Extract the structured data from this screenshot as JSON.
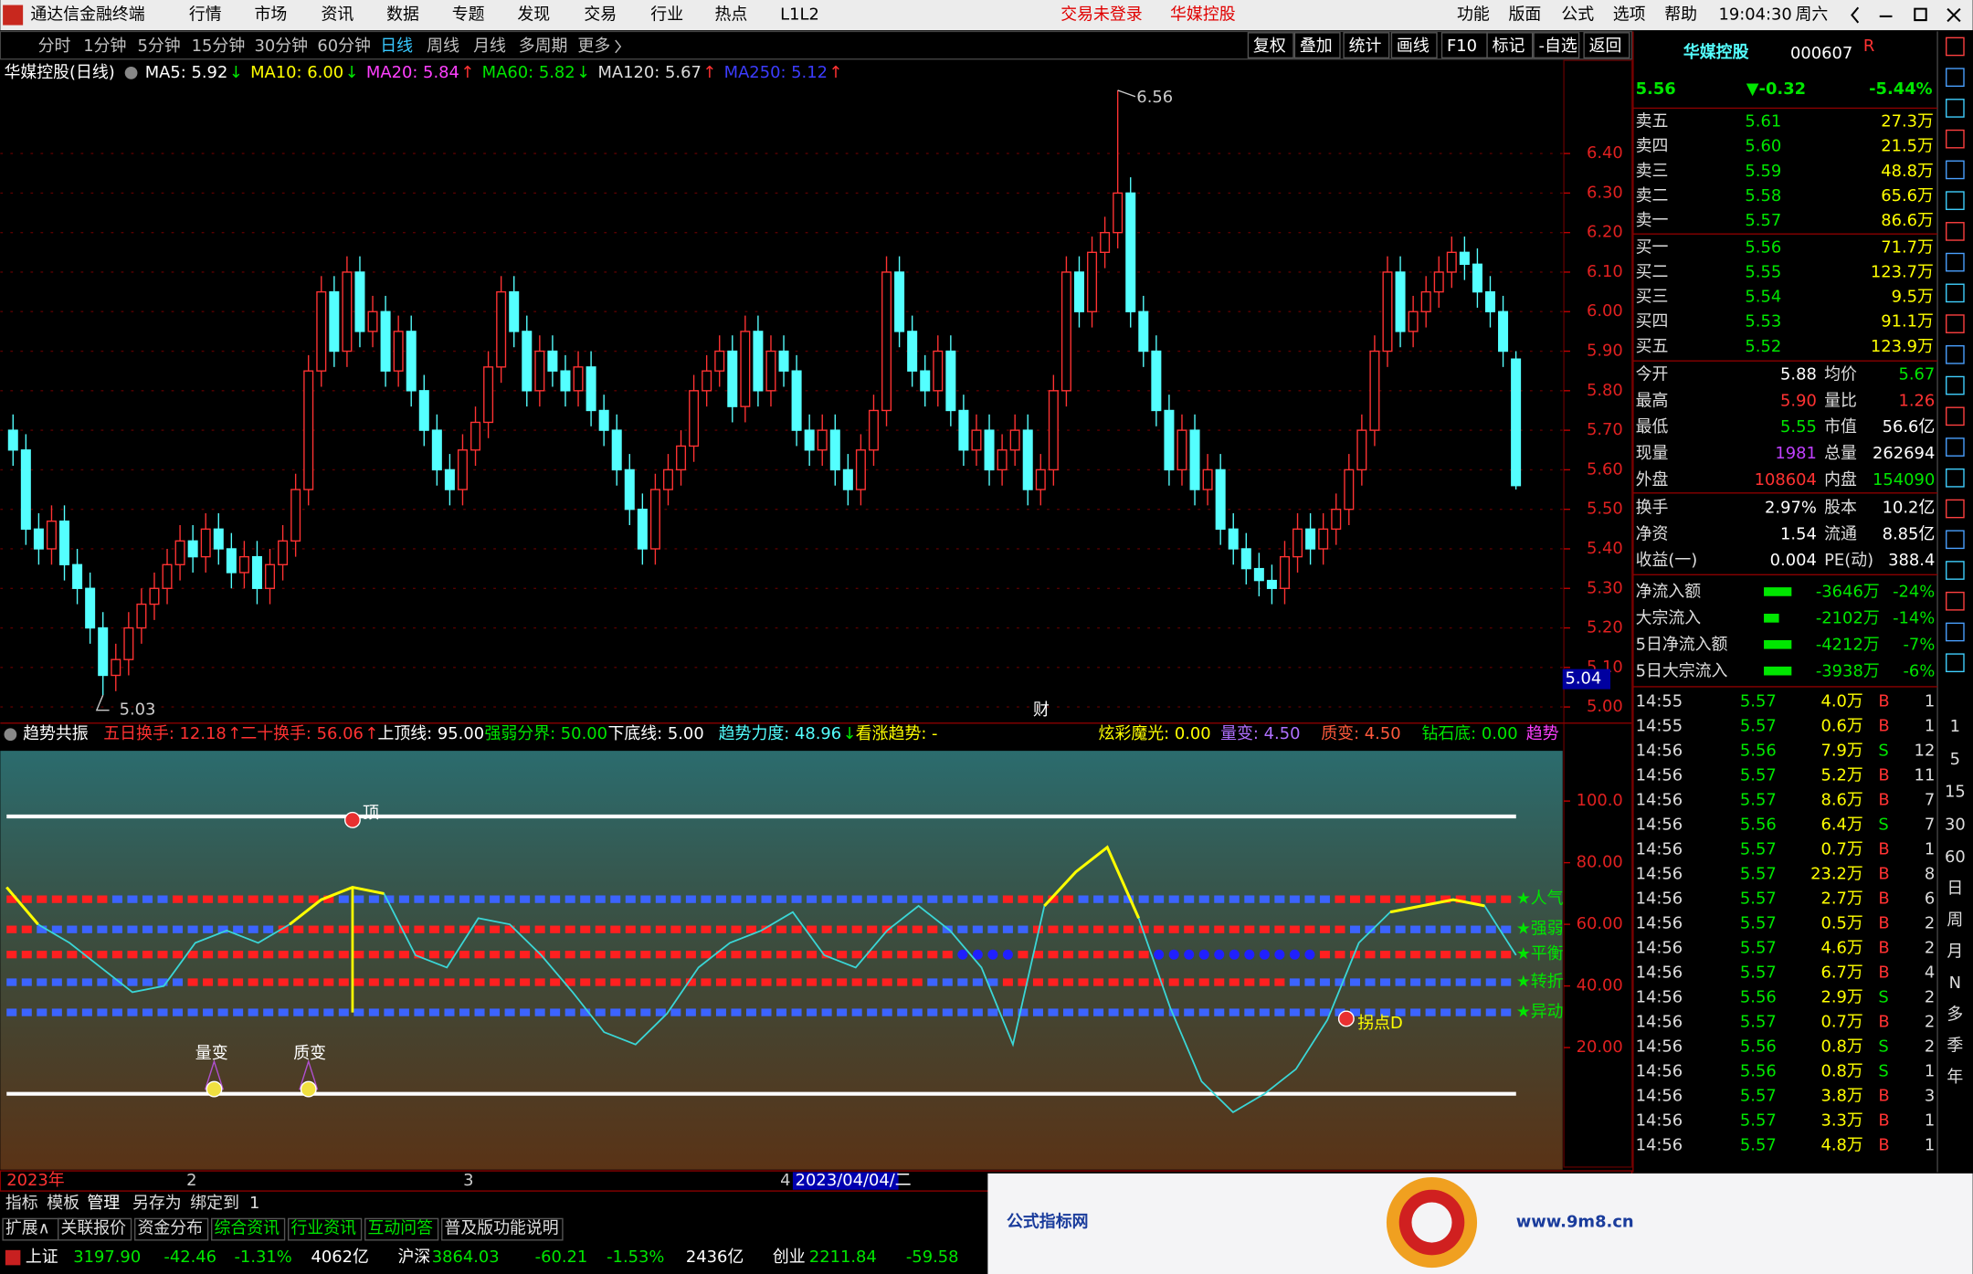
{
  "menu": {
    "app": "通达信金融终端",
    "items": [
      "行情",
      "市场",
      "资讯",
      "数据",
      "专题",
      "发现",
      "交易",
      "行业",
      "热点",
      "L1L2"
    ],
    "login": "交易未登录",
    "stock_link": "华媒控股",
    "right": [
      "功能",
      "版面",
      "公式",
      "选项",
      "帮助"
    ],
    "time": "19:04:30",
    "weekday": "周六"
  },
  "period_tabs": [
    "分时",
    "1分钟",
    "5分钟",
    "15分钟",
    "30分钟",
    "60分钟",
    "日线",
    "周线",
    "月线",
    "多周期",
    "更多"
  ],
  "tools": [
    "复权",
    "叠加",
    "统计",
    "画线",
    "F10",
    "标记",
    "-自选",
    "返回"
  ],
  "chart_data": {
    "type": "candlestick",
    "stock_label": "华媒控股(日线)",
    "ma": [
      {
        "label": "MA5: 5.92",
        "arrow": "↓",
        "color": "#ffffff"
      },
      {
        "label": "MA10: 6.00",
        "arrow": "↓",
        "color": "#ffff00"
      },
      {
        "label": "MA20: 5.84",
        "arrow": "↑",
        "color": "#ff40ff"
      },
      {
        "label": "MA60: 5.82",
        "arrow": "↓",
        "color": "#00e600"
      },
      {
        "label": "MA120: 5.67",
        "arrow": "↑",
        "color": "#dddddd"
      },
      {
        "label": "MA250: 5.12",
        "arrow": "↑",
        "color": "#3c3cff"
      }
    ],
    "up_color": "#ff3232",
    "down_color": "#54ffff",
    "ylim": [
      4.975,
      6.572
    ],
    "yticks": [
      {
        "value": 6.4,
        "label": "6.40"
      },
      {
        "value": 6.3,
        "label": "6.30"
      },
      {
        "value": 6.2,
        "label": "6.20"
      },
      {
        "value": 6.1,
        "label": "6.10"
      },
      {
        "value": 6.0,
        "label": "6.00"
      },
      {
        "value": 5.9,
        "label": "5.90"
      },
      {
        "value": 5.8,
        "label": "5.80"
      },
      {
        "value": 5.7,
        "label": "5.70"
      },
      {
        "value": 5.6,
        "label": "5.60"
      },
      {
        "value": 5.5,
        "label": "5.50"
      },
      {
        "value": 5.4,
        "label": "5.40"
      },
      {
        "value": 5.3,
        "label": "5.30"
      },
      {
        "value": 5.2,
        "label": "5.20"
      },
      {
        "value": 5.1,
        "label": "5.10"
      },
      {
        "value": 5.0,
        "label": "5.00"
      }
    ],
    "cursor_price": "5.04",
    "marker": "财",
    "candles": [
      [
        5.7,
        5.74,
        5.61,
        5.65
      ],
      [
        5.65,
        5.69,
        5.41,
        5.45
      ],
      [
        5.45,
        5.49,
        5.36,
        5.4
      ],
      [
        5.4,
        5.51,
        5.36,
        5.47
      ],
      [
        5.47,
        5.51,
        5.32,
        5.36
      ],
      [
        5.36,
        5.4,
        5.26,
        5.3
      ],
      [
        5.3,
        5.34,
        5.16,
        5.2
      ],
      [
        5.2,
        5.24,
        5.03,
        5.08
      ],
      [
        5.08,
        5.16,
        5.04,
        5.12
      ],
      [
        5.12,
        5.24,
        5.08,
        5.2
      ],
      [
        5.2,
        5.3,
        5.16,
        5.26
      ],
      [
        5.26,
        5.34,
        5.22,
        5.3
      ],
      [
        5.3,
        5.4,
        5.26,
        5.36
      ],
      [
        5.36,
        5.46,
        5.32,
        5.42
      ],
      [
        5.42,
        5.46,
        5.34,
        5.38
      ],
      [
        5.38,
        5.49,
        5.34,
        5.45
      ],
      [
        5.45,
        5.49,
        5.36,
        5.4
      ],
      [
        5.4,
        5.44,
        5.3,
        5.34
      ],
      [
        5.34,
        5.42,
        5.3,
        5.38
      ],
      [
        5.38,
        5.42,
        5.26,
        5.3
      ],
      [
        5.3,
        5.4,
        5.26,
        5.36
      ],
      [
        5.36,
        5.46,
        5.32,
        5.42
      ],
      [
        5.42,
        5.59,
        5.38,
        5.55
      ],
      [
        5.55,
        5.89,
        5.51,
        5.85
      ],
      [
        5.85,
        6.09,
        5.81,
        6.05
      ],
      [
        6.05,
        6.09,
        5.86,
        5.9
      ],
      [
        5.9,
        6.14,
        5.86,
        6.1
      ],
      [
        6.1,
        6.14,
        5.91,
        5.95
      ],
      [
        5.95,
        6.04,
        5.91,
        6.0
      ],
      [
        6.0,
        6.04,
        5.81,
        5.85
      ],
      [
        5.85,
        5.99,
        5.81,
        5.95
      ],
      [
        5.95,
        5.99,
        5.76,
        5.8
      ],
      [
        5.8,
        5.84,
        5.66,
        5.7
      ],
      [
        5.7,
        5.74,
        5.56,
        5.6
      ],
      [
        5.6,
        5.64,
        5.51,
        5.55
      ],
      [
        5.55,
        5.69,
        5.51,
        5.65
      ],
      [
        5.65,
        5.76,
        5.61,
        5.72
      ],
      [
        5.72,
        5.9,
        5.68,
        5.86
      ],
      [
        5.86,
        6.09,
        5.82,
        6.05
      ],
      [
        6.05,
        6.09,
        5.91,
        5.95
      ],
      [
        5.95,
        5.99,
        5.76,
        5.8
      ],
      [
        5.8,
        5.94,
        5.76,
        5.9
      ],
      [
        5.9,
        5.94,
        5.81,
        5.85
      ],
      [
        5.85,
        5.89,
        5.76,
        5.8
      ],
      [
        5.8,
        5.9,
        5.76,
        5.86
      ],
      [
        5.86,
        5.9,
        5.71,
        5.75
      ],
      [
        5.75,
        5.79,
        5.66,
        5.7
      ],
      [
        5.7,
        5.74,
        5.56,
        5.6
      ],
      [
        5.6,
        5.64,
        5.46,
        5.5
      ],
      [
        5.5,
        5.54,
        5.36,
        5.4
      ],
      [
        5.4,
        5.59,
        5.36,
        5.55
      ],
      [
        5.55,
        5.64,
        5.51,
        5.6
      ],
      [
        5.6,
        5.7,
        5.56,
        5.66
      ],
      [
        5.66,
        5.84,
        5.62,
        5.8
      ],
      [
        5.8,
        5.89,
        5.76,
        5.85
      ],
      [
        5.85,
        5.94,
        5.81,
        5.9
      ],
      [
        5.9,
        5.94,
        5.72,
        5.76
      ],
      [
        5.76,
        5.99,
        5.72,
        5.95
      ],
      [
        5.95,
        5.99,
        5.76,
        5.8
      ],
      [
        5.8,
        5.94,
        5.76,
        5.9
      ],
      [
        5.9,
        5.94,
        5.81,
        5.85
      ],
      [
        5.85,
        5.89,
        5.66,
        5.7
      ],
      [
        5.7,
        5.74,
        5.61,
        5.65
      ],
      [
        5.65,
        5.74,
        5.61,
        5.7
      ],
      [
        5.7,
        5.74,
        5.56,
        5.6
      ],
      [
        5.6,
        5.64,
        5.51,
        5.55
      ],
      [
        5.55,
        5.69,
        5.51,
        5.65
      ],
      [
        5.65,
        5.79,
        5.61,
        5.75
      ],
      [
        5.75,
        6.14,
        5.71,
        6.1
      ],
      [
        6.1,
        6.14,
        5.91,
        5.95
      ],
      [
        5.95,
        5.99,
        5.81,
        5.85
      ],
      [
        5.85,
        5.89,
        5.76,
        5.8
      ],
      [
        5.8,
        5.94,
        5.76,
        5.9
      ],
      [
        5.9,
        5.94,
        5.71,
        5.75
      ],
      [
        5.75,
        5.79,
        5.61,
        5.65
      ],
      [
        5.65,
        5.74,
        5.61,
        5.7
      ],
      [
        5.7,
        5.74,
        5.56,
        5.6
      ],
      [
        5.6,
        5.69,
        5.56,
        5.65
      ],
      [
        5.65,
        5.74,
        5.61,
        5.7
      ],
      [
        5.7,
        5.74,
        5.51,
        5.55
      ],
      [
        5.55,
        5.64,
        5.51,
        5.6
      ],
      [
        5.6,
        5.84,
        5.56,
        5.8
      ],
      [
        5.8,
        6.14,
        5.76,
        6.1
      ],
      [
        6.1,
        6.14,
        5.96,
        6.0
      ],
      [
        6.0,
        6.19,
        5.96,
        6.15
      ],
      [
        6.15,
        6.24,
        6.11,
        6.2
      ],
      [
        6.2,
        6.56,
        6.16,
        6.3
      ],
      [
        6.3,
        6.34,
        5.96,
        6.0
      ],
      [
        6.0,
        6.04,
        5.86,
        5.9
      ],
      [
        5.9,
        5.94,
        5.71,
        5.75
      ],
      [
        5.75,
        5.79,
        5.56,
        5.6
      ],
      [
        5.6,
        5.74,
        5.56,
        5.7
      ],
      [
        5.7,
        5.74,
        5.51,
        5.55
      ],
      [
        5.55,
        5.64,
        5.51,
        5.6
      ],
      [
        5.6,
        5.64,
        5.41,
        5.45
      ],
      [
        5.45,
        5.49,
        5.36,
        5.4
      ],
      [
        5.4,
        5.44,
        5.31,
        5.35
      ],
      [
        5.35,
        5.39,
        5.28,
        5.32
      ],
      [
        5.32,
        5.36,
        5.26,
        5.3
      ],
      [
        5.3,
        5.42,
        5.26,
        5.38
      ],
      [
        5.38,
        5.49,
        5.34,
        5.45
      ],
      [
        5.45,
        5.49,
        5.36,
        5.4
      ],
      [
        5.4,
        5.49,
        5.36,
        5.45
      ],
      [
        5.45,
        5.54,
        5.41,
        5.5
      ],
      [
        5.5,
        5.64,
        5.46,
        5.6
      ],
      [
        5.6,
        5.74,
        5.56,
        5.7
      ],
      [
        5.7,
        5.94,
        5.66,
        5.9
      ],
      [
        5.9,
        6.14,
        5.86,
        6.1
      ],
      [
        6.1,
        6.14,
        5.91,
        5.95
      ],
      [
        5.95,
        6.04,
        5.91,
        6.0
      ],
      [
        6.0,
        6.09,
        5.96,
        6.05
      ],
      [
        6.05,
        6.14,
        6.01,
        6.1
      ],
      [
        6.1,
        6.19,
        6.06,
        6.15
      ],
      [
        6.15,
        6.19,
        6.08,
        6.12
      ],
      [
        6.12,
        6.16,
        6.01,
        6.05
      ],
      [
        6.05,
        6.09,
        5.96,
        6.0
      ],
      [
        6.0,
        6.04,
        5.86,
        5.9
      ],
      [
        5.88,
        5.9,
        5.55,
        5.56
      ]
    ]
  },
  "indicator": {
    "type": "line",
    "title": "趋势共振",
    "params": [
      {
        "text": "五日换手: 12.18",
        "arrow": "↑",
        "color": "#ff3232"
      },
      {
        "text": "二十换手: 56.06",
        "arrow": "↑",
        "color": "#ff3232"
      },
      {
        "text": "上顶线: 95.00",
        "color": "#ffffff"
      },
      {
        "text": "强弱分界: 50.00",
        "color": "#00e600"
      },
      {
        "text": "下底线: 5.00",
        "color": "#ffffff"
      },
      {
        "text": "趋势力度: 48.96",
        "arrow": "↓",
        "color": "#54ffff"
      },
      {
        "text": "看涨趋势: -",
        "color": "#ffff00"
      },
      {
        "text": "炫彩魔光: 0.00",
        "color": "#ffff00"
      },
      {
        "text": "量变: 4.50",
        "color": "#b070ff"
      },
      {
        "text": "质变: 4.50",
        "color": "#ff5a3c"
      },
      {
        "text": "钻石底: 0.00",
        "color": "#00e600"
      },
      {
        "text": "趋势",
        "color": "#ff40ff"
      }
    ],
    "ylim": [
      -19.6,
      116.3
    ],
    "yticks": [
      {
        "value": 100,
        "label": "100.0"
      },
      {
        "value": 80,
        "label": "80.00"
      },
      {
        "value": 60,
        "label": "60.00"
      },
      {
        "value": 40,
        "label": "40.00"
      },
      {
        "value": 20,
        "label": "20.00"
      }
    ],
    "levels": {
      "top": 95,
      "bottom": 5
    },
    "row_labels": [
      "★人气",
      "★强弱",
      "★平衡",
      "★转折",
      "★异动"
    ],
    "series": [
      {
        "color": "#3ad6d6",
        "values": [
          72,
          60,
          54,
          46,
          38,
          40,
          54,
          58,
          54,
          60,
          68,
          72,
          70,
          50,
          46,
          62,
          60,
          50,
          38,
          25,
          21,
          31,
          46,
          54,
          58,
          64,
          50,
          46,
          58,
          66,
          58,
          46,
          21,
          66,
          77,
          85,
          62,
          33,
          9,
          -1,
          5,
          13,
          29,
          54,
          64,
          66,
          68,
          66,
          50
        ]
      },
      {
        "color": "#ffff00",
        "values": [
          72,
          60,
          null,
          null,
          null,
          null,
          null,
          null,
          null,
          60,
          68,
          72,
          70,
          null,
          null,
          null,
          null,
          null,
          null,
          null,
          null,
          null,
          null,
          null,
          null,
          64,
          null,
          null,
          null,
          66,
          null,
          null,
          null,
          66,
          77,
          85,
          62,
          null,
          null,
          null,
          null,
          null,
          null,
          null,
          64,
          66,
          68,
          66,
          null
        ]
      }
    ],
    "markers": [
      "顶",
      "量变",
      "质变",
      "拐点D"
    ]
  },
  "date_axis": [
    "2023年",
    "2",
    "3",
    "4",
    "2023/04/04/二"
  ],
  "bottom_tabs": [
    "指标",
    "模板",
    "管理",
    "另存为",
    "绑定到",
    "1"
  ],
  "bottom_links": [
    "扩展∧",
    "关联报价",
    "资金分布",
    "综合资讯",
    "行业资讯",
    "互动问答",
    "普及版功能说明"
  ],
  "index_bar": [
    "上证",
    "3197.90",
    "-42.46",
    "-1.31%",
    "4062亿",
    "沪深",
    "3864.03",
    "-60.21",
    "-1.53%",
    "2436亿",
    "创业",
    "2211.84",
    "-59.58"
  ],
  "quote": {
    "name": "华媒控股",
    "code": "000607",
    "tag": "R",
    "price": "5.56",
    "change": "▼-0.32",
    "pct": "-5.44%",
    "asks": [
      [
        "卖五",
        "5.61",
        "27.3万"
      ],
      [
        "卖四",
        "5.60",
        "21.5万"
      ],
      [
        "卖三",
        "5.59",
        "48.8万"
      ],
      [
        "卖二",
        "5.58",
        "65.6万"
      ],
      [
        "卖一",
        "5.57",
        "86.6万"
      ]
    ],
    "bids": [
      [
        "买一",
        "5.56",
        "71.7万"
      ],
      [
        "买二",
        "5.55",
        "123.7万"
      ],
      [
        "买三",
        "5.54",
        "9.5万"
      ],
      [
        "买四",
        "5.53",
        "91.1万"
      ],
      [
        "买五",
        "5.52",
        "123.9万"
      ]
    ],
    "stats": [
      [
        "今开",
        "5.88",
        "均价",
        "5.67"
      ],
      [
        "最高",
        "5.90",
        "量比",
        "1.26"
      ],
      [
        "最低",
        "5.55",
        "市值",
        "56.6亿"
      ],
      [
        "现量",
        "1981",
        "总量",
        "262694"
      ],
      [
        "外盘",
        "108604",
        "内盘",
        "154090"
      ]
    ],
    "stats2": [
      [
        "换手",
        "2.97%",
        "股本",
        "10.2亿"
      ],
      [
        "净资",
        "1.54",
        "流通",
        "8.85亿"
      ],
      [
        "收益(一)",
        "0.004",
        "PE(动)",
        "388.4"
      ]
    ],
    "flows": [
      [
        "净流入额",
        "-3646万",
        "-24%"
      ],
      [
        "大宗流入",
        "-2102万",
        "-14%"
      ],
      [
        "5日净流入额",
        "-4212万",
        "-7%"
      ],
      [
        "5日大宗流入",
        "-3938万",
        "-6%"
      ]
    ],
    "ticks": [
      [
        "14:55",
        "5.57",
        "4.0万",
        "B",
        "1"
      ],
      [
        "14:55",
        "5.57",
        "0.6万",
        "B",
        "1"
      ],
      [
        "14:56",
        "5.56",
        "7.9万",
        "S",
        "12"
      ],
      [
        "14:56",
        "5.57",
        "5.2万",
        "B",
        "11"
      ],
      [
        "14:56",
        "5.57",
        "8.6万",
        "B",
        "7"
      ],
      [
        "14:56",
        "5.56",
        "6.4万",
        "S",
        "7"
      ],
      [
        "14:56",
        "5.57",
        "0.7万",
        "B",
        "1"
      ],
      [
        "14:56",
        "5.57",
        "23.2万",
        "B",
        "8"
      ],
      [
        "14:56",
        "5.57",
        "2.7万",
        "B",
        "6"
      ],
      [
        "14:56",
        "5.57",
        "0.5万",
        "B",
        "2"
      ],
      [
        "14:56",
        "5.57",
        "4.6万",
        "B",
        "2"
      ],
      [
        "14:56",
        "5.57",
        "6.7万",
        "B",
        "4"
      ],
      [
        "14:56",
        "5.56",
        "2.9万",
        "S",
        "2"
      ],
      [
        "14:56",
        "5.57",
        "0.7万",
        "B",
        "2"
      ],
      [
        "14:56",
        "5.56",
        "0.8万",
        "S",
        "2"
      ],
      [
        "14:56",
        "5.56",
        "0.8万",
        "S",
        "1"
      ],
      [
        "14:56",
        "5.57",
        "3.8万",
        "B",
        "3"
      ],
      [
        "14:56",
        "5.57",
        "3.3万",
        "B",
        "1"
      ],
      [
        "14:56",
        "5.57",
        "4.8万",
        "B",
        "1"
      ]
    ]
  },
  "side_tabs": {
    "minutes": [
      "1",
      "5",
      "15",
      "30",
      "60"
    ],
    "periods": [
      "日",
      "周",
      "月",
      "N",
      "多",
      "季",
      "年"
    ]
  },
  "watermark": {
    "title": "公式指标网",
    "url": "www.9m8.cn"
  }
}
